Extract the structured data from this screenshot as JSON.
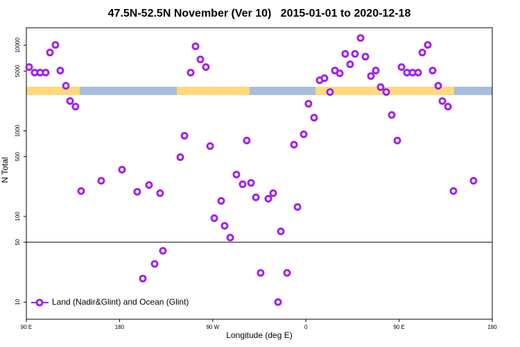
{
  "chart_data": {
    "type": "scatter",
    "title": "47.5N-52.5N November (Ver 10)   2015-01-01 to 2020-12-18",
    "x_label": "Longitude (deg E)",
    "y_label": "N Total",
    "log_y": true,
    "legend": "bottom-left",
    "hline": 50,
    "xlim": [
      90,
      540
    ],
    "xticks": [
      {
        "value": 90,
        "label": "90 E"
      },
      180,
      {
        "value": 270,
        "label": "90 W"
      },
      {
        "value": 360,
        "label": "0"
      },
      {
        "value": 450,
        "label": "90 E"
      },
      {
        "value": 540,
        "label": "180"
      }
    ],
    "ylim": [
      6.3,
      16000
    ],
    "yticks": [
      10,
      50,
      100,
      500,
      1000,
      5000,
      10000
    ],
    "series": [
      {
        "name": "Land (Nadir&Glint) and Ocean (Glint)",
        "color": "#a020f0",
        "x": [
          92.7,
          98,
          103.4,
          108.7,
          112.8,
          118.1,
          122.8,
          128.2,
          132.2,
          137.5,
          142.9,
          162.3,
          182.4,
          197.1,
          202.5,
          208.5,
          213.9,
          219.2,
          221.9,
          238.7,
          242.7,
          248.7,
          253.4,
          258.1,
          263.4,
          267.5,
          271.5,
          278.2,
          281.5,
          286.9,
          292.9,
          298.9,
          302.9,
          307,
          311.7,
          316.3,
          323.7,
          328.4,
          333.1,
          335.8,
          341.8,
          348.5,
          351.9,
          357.9,
          362.5,
          367.9,
          373.3,
          377.9,
          383.3,
          388,
          392.7,
          398,
          402.7,
          407.4,
          412.8,
          417.5,
          422.8,
          427.5,
          432.2,
          437.6,
          442.9,
          448.3,
          452.3,
          457.6,
          463,
          468.4,
          472.4,
          477.7,
          482.4,
          487.8,
          491.8,
          497.2,
          502.5,
          521.9
        ],
        "values": [
          5560,
          4790,
          4790,
          4790,
          8220,
          10090,
          5060,
          3360,
          2230,
          1920,
          198,
          261,
          352,
          194,
          18.8,
          233,
          27.9,
          187,
          39.7,
          492,
          877,
          4790,
          9720,
          6820,
          5560,
          664,
          95.5,
          152,
          77.8,
          56.6,
          309,
          238,
          771,
          247,
          167,
          21.9,
          161,
          187,
          10,
          67,
          21.9,
          689,
          129,
          912,
          2070,
          1425,
          3900,
          4120,
          2840,
          5060,
          4700,
          7920,
          5990,
          7920,
          12160,
          7350,
          4360,
          5060,
          3240,
          2840,
          1535,
          771,
          5560,
          4790,
          4790,
          4790,
          8220,
          10090,
          5060,
          3360,
          2230,
          1920,
          198,
          261
        ]
      }
    ]
  }
}
